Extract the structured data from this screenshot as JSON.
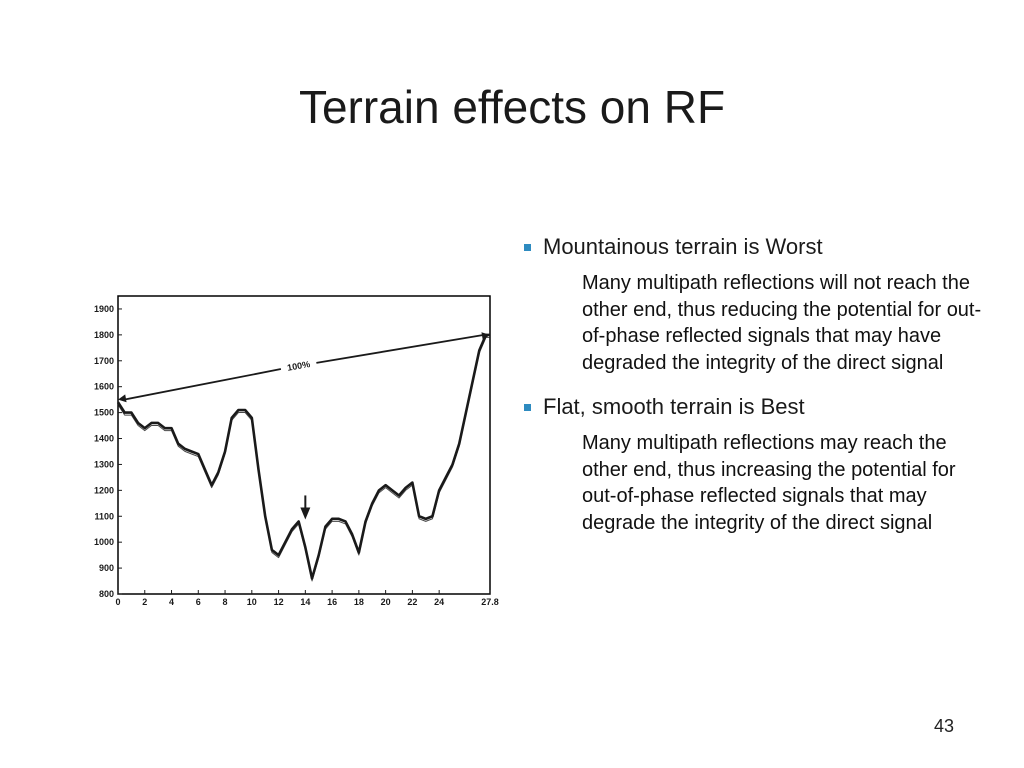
{
  "slide": {
    "title": "Terrain effects on RF",
    "page_number": "43"
  },
  "bullets": [
    {
      "title": "Mountainous terrain is Worst",
      "body": "Many multipath reflections will not reach the other end, thus reducing the potential for out-of-phase reflected signals that may have degraded the integrity of the direct signal"
    },
    {
      "title": "Flat, smooth terrain is Best",
      "body": "Many multipath reflections may reach the other end, thus increasing the potential for out-of-phase reflected signals that may degrade the integrity of the direct signal"
    }
  ],
  "chart_data": {
    "type": "line",
    "title": "",
    "xlabel": "",
    "ylabel": "",
    "x_ticks": [
      "0",
      "2",
      "4",
      "6",
      "8",
      "10",
      "12",
      "14",
      "16",
      "18",
      "20",
      "22",
      "24",
      "27.8"
    ],
    "y_ticks": [
      800,
      900,
      1000,
      1100,
      1200,
      1300,
      1400,
      1500,
      1600,
      1700,
      1800,
      1900
    ],
    "xlim": [
      0,
      27.8
    ],
    "ylim": [
      800,
      1950
    ],
    "grid": false,
    "series": [
      {
        "x": [
          0,
          0.5,
          1,
          1.5,
          2,
          2.5,
          3,
          3.5,
          4,
          4.5,
          5,
          5.5,
          6,
          6.5,
          7,
          7.5,
          8,
          8.5,
          9,
          9.5,
          10,
          10.5,
          11,
          11.5,
          12,
          12.5,
          13,
          13.5,
          14,
          14.5,
          15,
          15.5,
          16,
          16.5,
          17,
          17.5,
          18,
          18.5,
          19,
          19.5,
          20,
          20.5,
          21,
          21.5,
          22,
          22.5,
          23,
          23.5,
          24,
          24.5,
          25,
          25.5,
          26,
          26.5,
          27,
          27.5,
          27.8
        ],
        "values": [
          1540,
          1500,
          1500,
          1460,
          1440,
          1460,
          1460,
          1440,
          1440,
          1380,
          1360,
          1350,
          1340,
          1280,
          1220,
          1270,
          1350,
          1480,
          1510,
          1510,
          1480,
          1280,
          1100,
          970,
          950,
          1000,
          1050,
          1080,
          980,
          860,
          950,
          1060,
          1090,
          1090,
          1080,
          1030,
          960,
          1080,
          1150,
          1200,
          1220,
          1200,
          1180,
          1210,
          1230,
          1100,
          1090,
          1100,
          1200,
          1250,
          1300,
          1380,
          1500,
          1620,
          1740,
          1800,
          1800
        ]
      }
    ],
    "annotations": [
      {
        "text": "100%",
        "x": 13.5,
        "y": 1680
      }
    ],
    "direct_path": {
      "from": [
        0,
        1550
      ],
      "to": [
        27.8,
        1800
      ]
    },
    "marker": {
      "x": 14,
      "y": 1080
    },
    "colors": {
      "line": "#1a1a1a",
      "axis": "#000000",
      "bullet": "#2e8bc0"
    }
  }
}
